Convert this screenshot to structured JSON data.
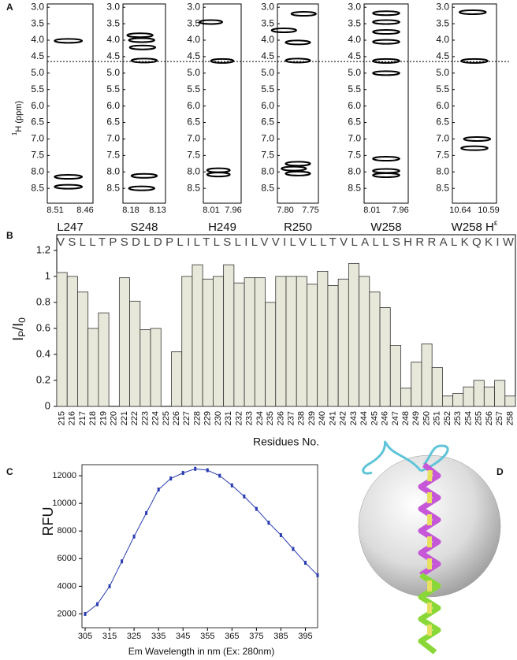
{
  "panels": [
    "A",
    "B",
    "C",
    "D"
  ],
  "chart_data": [
    {
      "type": "nmr-strip",
      "title": "L247",
      "ylabel_parts": [
        "1",
        "H (ppm)"
      ],
      "hline": 4.65,
      "xlim": [
        8.51,
        8.46
      ],
      "xticks": [
        8.51,
        8.46
      ],
      "ylim": [
        8.95,
        2.9
      ],
      "yticks": [
        {
          "value": 3,
          "label": "3.0"
        },
        3.5,
        {
          "value": 4,
          "label": "4.0"
        },
        4.5,
        {
          "value": 5,
          "label": "5.0"
        },
        5.5,
        {
          "value": 6,
          "label": "6.0"
        },
        6.5,
        {
          "value": 7,
          "label": "7.0"
        },
        7.5,
        {
          "value": 8,
          "label": "8.0"
        },
        8.5
      ],
      "x": [
        8.487,
        8.487,
        8.487
      ],
      "values": [
        4.02,
        8.15,
        8.45
      ]
    },
    {
      "type": "nmr-strip",
      "title": "S248",
      "xlim": [
        8.18,
        8.13
      ],
      "xticks": [
        8.18,
        8.13
      ],
      "ylim": [
        8.95,
        2.9
      ],
      "yticks": [
        {
          "value": 3,
          "label": "3.0"
        },
        3.5,
        {
          "value": 4,
          "label": "4.0"
        },
        4.5,
        {
          "value": 5,
          "label": "5.0"
        },
        5.5,
        {
          "value": 6,
          "label": "6.0"
        },
        6.5,
        {
          "value": 7,
          "label": "7.0"
        },
        7.5,
        {
          "value": 8,
          "label": "8.0"
        },
        8.5
      ],
      "x": [
        8.16,
        8.158,
        8.157,
        8.155,
        8.155,
        8.158
      ],
      "values": [
        3.85,
        4.0,
        4.22,
        4.62,
        8.12,
        8.5
      ]
    },
    {
      "type": "nmr-strip",
      "title": "H249",
      "xlim": [
        8.01,
        7.96
      ],
      "xticks": [
        8.01,
        7.96
      ],
      "ylim": [
        8.95,
        2.9
      ],
      "yticks": [
        {
          "value": 3,
          "label": "3.0"
        },
        3.5,
        {
          "value": 4,
          "label": "4.0"
        },
        4.5,
        {
          "value": 5,
          "label": "5.0"
        },
        5.5,
        {
          "value": 6,
          "label": "6.0"
        },
        6.5,
        {
          "value": 7,
          "label": "7.0"
        },
        7.5,
        {
          "value": 8,
          "label": "8.0"
        },
        8.5
      ],
      "x": [
        8.0,
        7.985,
        7.99,
        7.99
      ],
      "values": [
        3.45,
        4.63,
        7.95,
        8.08
      ]
    },
    {
      "type": "nmr-strip",
      "title": "R250",
      "xlim": [
        7.8,
        7.75
      ],
      "xticks": [
        {
          "value": 7.8,
          "label": "7.80"
        },
        7.75
      ],
      "ylim": [
        8.95,
        2.9
      ],
      "yticks": [
        {
          "value": 3,
          "label": "3.0"
        },
        3.5,
        {
          "value": 4,
          "label": "4.0"
        },
        4.5,
        {
          "value": 5,
          "label": "5.0"
        },
        5.5,
        {
          "value": 6,
          "label": "6.0"
        },
        6.5,
        {
          "value": 7,
          "label": "7.0"
        },
        7.5,
        {
          "value": 8,
          "label": "8.0"
        },
        8.5
      ],
      "x": [
        7.768,
        7.792,
        7.775,
        7.775,
        7.775,
        7.78,
        7.775
      ],
      "values": [
        3.2,
        3.7,
        4.07,
        4.62,
        7.75,
        7.9,
        8.05
      ]
    },
    {
      "type": "nmr-strip",
      "title": "W258",
      "xlim": [
        8.01,
        7.96
      ],
      "xticks": [
        8.01,
        7.96
      ],
      "ylim": [
        8.95,
        2.9
      ],
      "yticks": [
        {
          "value": 3,
          "label": "3.0"
        },
        3.5,
        {
          "value": 4,
          "label": "4.0"
        },
        4.5,
        {
          "value": 5,
          "label": "5.0"
        },
        5.5,
        {
          "value": 6,
          "label": "6.0"
        },
        6.5,
        {
          "value": 7,
          "label": "7.0"
        },
        7.5,
        {
          "value": 8,
          "label": "8.0"
        },
        8.5
      ],
      "x": [
        7.985,
        7.985,
        7.985,
        7.985,
        7.985,
        7.985,
        7.985,
        7.985,
        7.985
      ],
      "values": [
        3.18,
        3.45,
        3.75,
        4.05,
        4.63,
        5.0,
        7.6,
        7.97,
        8.1
      ]
    },
    {
      "type": "nmr-strip",
      "title_parts": [
        "W258 H",
        "ε"
      ],
      "xlim": [
        10.64,
        10.59
      ],
      "xticks": [
        10.64,
        10.59
      ],
      "ylim": [
        8.95,
        2.9
      ],
      "yticks": [
        {
          "value": 3,
          "label": "3.0"
        },
        3.5,
        {
          "value": 4,
          "label": "4.0"
        },
        4.5,
        {
          "value": 5,
          "label": "5.0"
        },
        5.5,
        {
          "value": 6,
          "label": "6.0"
        },
        6.5,
        {
          "value": 7,
          "label": "7.0"
        },
        7.5,
        {
          "value": 8,
          "label": "8.0"
        },
        8.5
      ],
      "x": [
        10.617,
        10.615,
        10.612,
        10.615
      ],
      "values": [
        3.15,
        4.63,
        7.0,
        7.28
      ]
    },
    {
      "type": "bar",
      "sequence": "VSLLTPSDLDPLILTLSLILVVILVLLTVLALLSHRRALKQKIW",
      "ylabel_parts": [
        "I",
        "P",
        "/I",
        "0"
      ],
      "xlabel": "Residues No.",
      "categories": [
        "215",
        "216",
        "217",
        "218",
        "219",
        "220",
        "221",
        "222",
        "223",
        "224",
        "225",
        "226",
        "227",
        "228",
        "229",
        "230",
        "231",
        "232",
        "233",
        "234",
        "235",
        "236",
        "237",
        "238",
        "239",
        "240",
        "241",
        "242",
        "243",
        "244",
        "245",
        "246",
        "247",
        "248",
        "249",
        "250",
        "251",
        "252",
        "253",
        "254",
        "255",
        "256",
        "257",
        "258"
      ],
      "values": [
        1.03,
        1.0,
        0.88,
        0.6,
        0.72,
        null,
        0.99,
        0.81,
        0.59,
        0.6,
        null,
        0.42,
        1.0,
        1.09,
        0.98,
        1.0,
        1.09,
        0.95,
        0.99,
        0.99,
        0.8,
        1.0,
        1.0,
        1.0,
        0.94,
        1.04,
        0.93,
        0.98,
        1.1,
        1.0,
        0.88,
        0.76,
        0.47,
        0.14,
        0.34,
        0.48,
        0.3,
        0.08,
        0.1,
        0.15,
        0.2,
        0.15,
        0.2,
        0.08
      ],
      "color": "#e8e8da",
      "ylim": [
        0,
        1.2
      ],
      "yticks": [
        0,
        0.2,
        0.4,
        0.6,
        0.8,
        1,
        1.2
      ]
    },
    {
      "type": "line",
      "xlabel": "Em Wavelength in nm (Ex: 280nm)",
      "ylabel": "RFU",
      "color": "#2a3cb0",
      "x": [
        305,
        310,
        315,
        320,
        325,
        330,
        335,
        340,
        345,
        350,
        355,
        360,
        365,
        370,
        375,
        380,
        385,
        390,
        395,
        400
      ],
      "values": [
        2000,
        2700,
        4000,
        5800,
        7600,
        9300,
        11000,
        11800,
        12200,
        12500,
        12400,
        12000,
        11300,
        10500,
        9600,
        8600,
        7700,
        6700,
        5700,
        4800
      ],
      "xlim": [
        305,
        400
      ],
      "xticks": [
        305,
        315,
        325,
        335,
        345,
        355,
        365,
        375,
        385,
        395
      ],
      "ylim": [
        1000,
        12800
      ],
      "yticks": [
        2000,
        4000,
        6000,
        8000,
        10000,
        12000
      ]
    }
  ]
}
